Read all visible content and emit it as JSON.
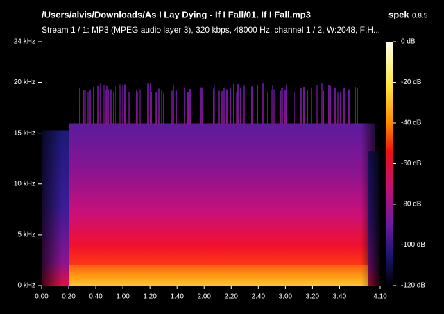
{
  "header": {
    "app": "spek",
    "version": "0.8.5"
  },
  "chart_data": {
    "type": "spectrogram",
    "title": "/Users/alvis/Downloads/As I Lay Dying - If I Fall/01. If I Fall.mp3",
    "subtitle": "Stream 1 / 1: MP3 (MPEG audio layer 3), 320 kbps, 48000 Hz, channel 1 / 2, W:2048, F:H...",
    "xlim": [
      0,
      250
    ],
    "xticks": [
      {
        "value": 0,
        "label": "0:00"
      },
      {
        "value": 20,
        "label": "0:20"
      },
      {
        "value": 40,
        "label": "0:40"
      },
      {
        "value": 60,
        "label": "1:00"
      },
      {
        "value": 80,
        "label": "1:20"
      },
      {
        "value": 100,
        "label": "1:40"
      },
      {
        "value": 120,
        "label": "2:00"
      },
      {
        "value": 140,
        "label": "2:20"
      },
      {
        "value": 160,
        "label": "2:40"
      },
      {
        "value": 180,
        "label": "3:00"
      },
      {
        "value": 200,
        "label": "3:20"
      },
      {
        "value": 220,
        "label": "3:40"
      },
      {
        "value": 250,
        "label": "4:10"
      }
    ],
    "ylim": [
      0,
      24
    ],
    "yticks": [
      {
        "value": 0,
        "label": "0 kHz"
      },
      {
        "value": 5,
        "label": "5 kHz"
      },
      {
        "value": 10,
        "label": "10 kHz"
      },
      {
        "value": 15,
        "label": "15 kHz"
      },
      {
        "value": 20,
        "label": "20 kHz"
      },
      {
        "value": 24,
        "label": "24 kHz"
      }
    ],
    "colorbar": {
      "lim": [
        -120,
        0
      ],
      "ticks": [
        {
          "value": 0,
          "label": "0 dB"
        },
        {
          "value": -20,
          "label": "-20 dB"
        },
        {
          "value": -40,
          "label": "-40 dB"
        },
        {
          "value": -60,
          "label": "-60 dB"
        },
        {
          "value": -80,
          "label": "-80 dB"
        },
        {
          "value": -100,
          "label": "-100 dB"
        },
        {
          "value": -120,
          "label": "-120 dB"
        }
      ]
    }
  }
}
